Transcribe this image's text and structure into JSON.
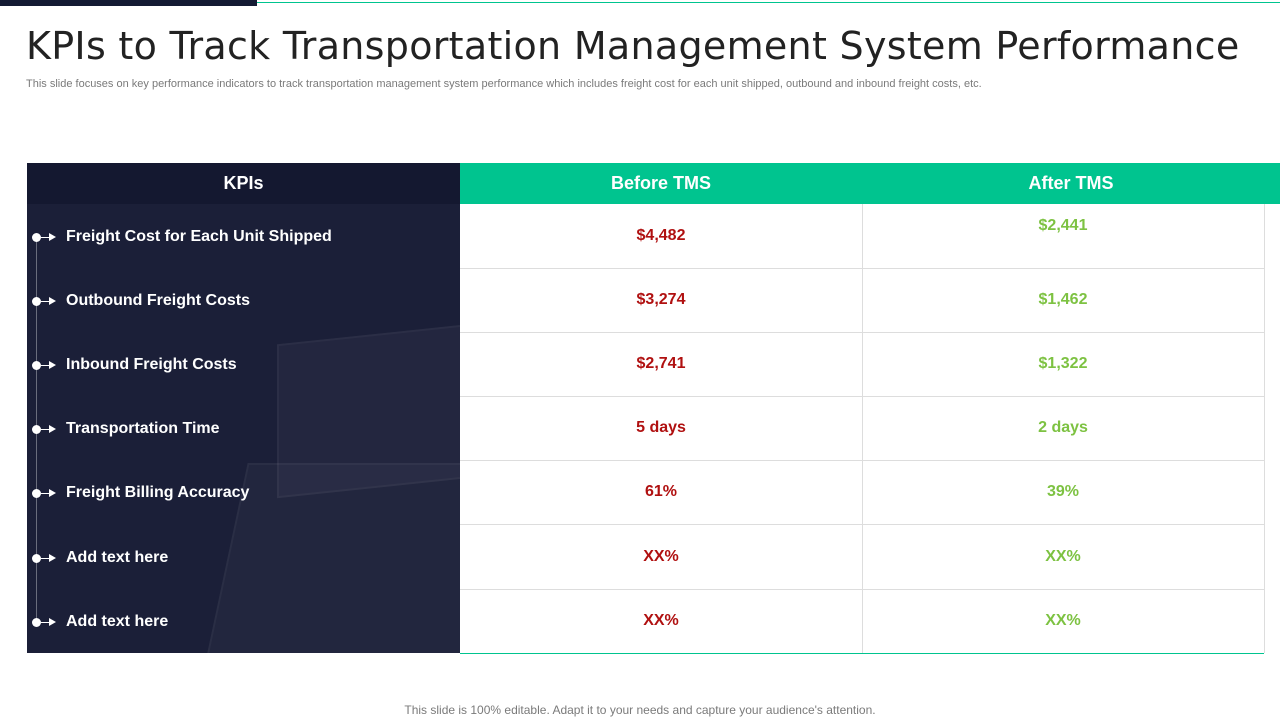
{
  "slide": {
    "title": "KPIs to Track Transportation Management System Performance",
    "subtitle": "This slide focuses on key performance indicators to track transportation management system performance which includes freight cost for each unit shipped, outbound and inbound freight costs, etc.",
    "footer": "This slide is 100% editable. Adapt it to your needs and capture your audience's attention."
  },
  "colors": {
    "dark_navy": "#1b1f38",
    "accent_green": "#00c48f",
    "before_red": "#b01010",
    "after_green": "#7dc242"
  },
  "table": {
    "headers": {
      "kpis": "KPIs",
      "before": "Before TMS",
      "after": "After TMS"
    },
    "rows": [
      {
        "kpi": "Freight Cost for Each Unit Shipped",
        "before": "$4,482",
        "after": "$2,441"
      },
      {
        "kpi": "Outbound Freight Costs",
        "before": "$3,274",
        "after": "$1,462"
      },
      {
        "kpi": "Inbound Freight Costs",
        "before": "$2,741",
        "after": "$1,322"
      },
      {
        "kpi": "Transportation Time",
        "before": "5 days",
        "after": "2 days"
      },
      {
        "kpi": "Freight Billing Accuracy",
        "before": "61%",
        "after": "39%"
      },
      {
        "kpi": "Add text here",
        "before": "XX%",
        "after": "XX%"
      },
      {
        "kpi": "Add text here",
        "before": "XX%",
        "after": "XX%"
      }
    ]
  }
}
